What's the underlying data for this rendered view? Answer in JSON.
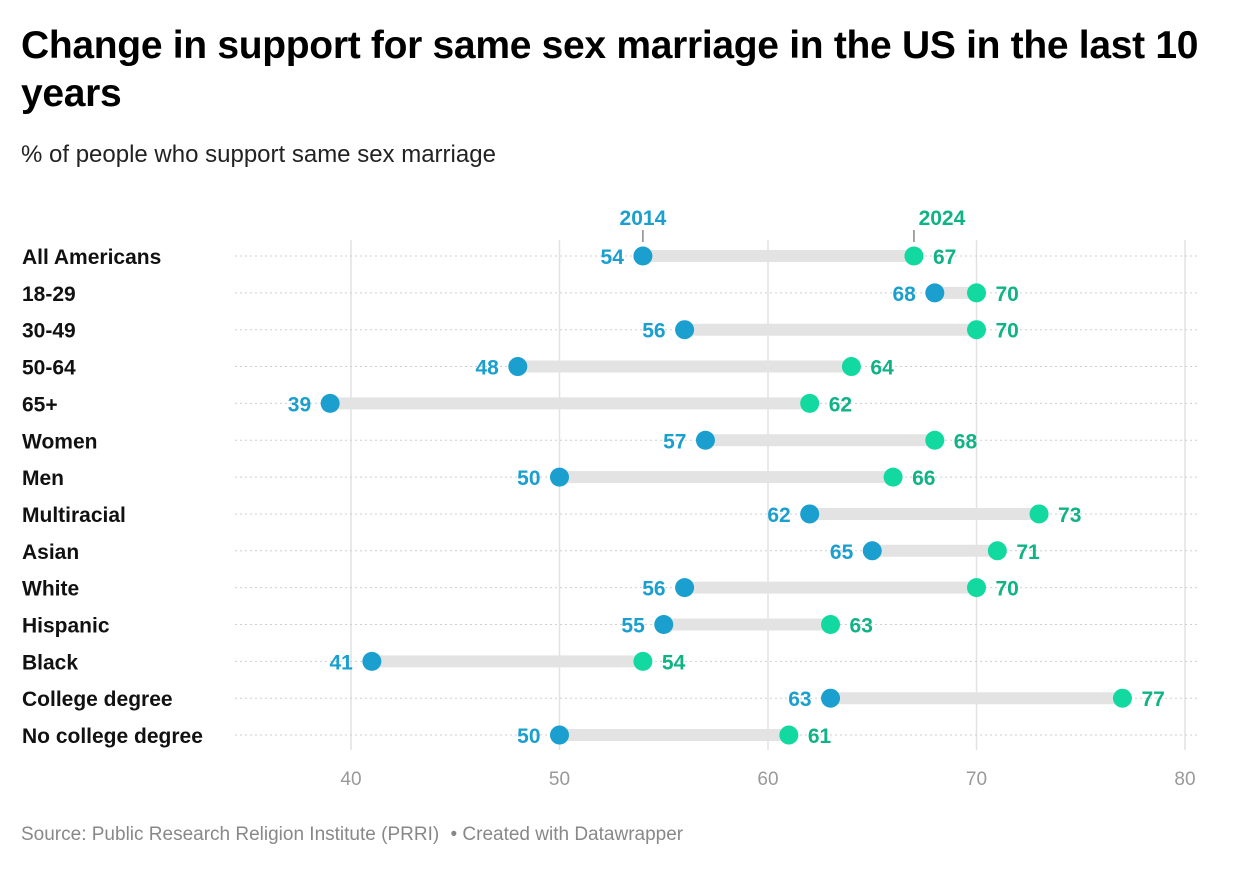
{
  "title": "Change in support for same sex marriage in the US in the last 10 years",
  "subtitle": "% of people who support same sex marriage",
  "footer": {
    "source": "Source: Public Research Religion Institute (PRRI)",
    "credit": "• Created with Datawrapper"
  },
  "chart_data": {
    "type": "dot-range",
    "categories": [
      "All Americans",
      "18-29",
      "30-49",
      "50-64",
      "65+",
      "Women",
      "Men",
      "Multiracial",
      "Asian",
      "White",
      "Hispanic",
      "Black",
      "College degree",
      "No college degree"
    ],
    "series": [
      {
        "name": "2014",
        "color": "#1a9fcf",
        "values": [
          54,
          68,
          56,
          48,
          39,
          57,
          50,
          62,
          65,
          56,
          55,
          41,
          63,
          50
        ]
      },
      {
        "name": "2024",
        "color": "#12d9a0",
        "label_color": "#10b386",
        "values": [
          67,
          70,
          70,
          64,
          62,
          68,
          66,
          73,
          71,
          70,
          63,
          54,
          77,
          61
        ]
      }
    ],
    "xticks": [
      40,
      50,
      60,
      70,
      80
    ],
    "xlim": [
      34.4,
      80.5
    ],
    "grid": true
  }
}
